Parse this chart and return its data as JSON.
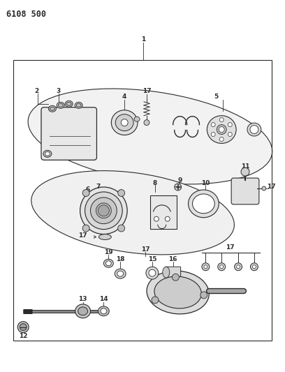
{
  "title": "6108 500",
  "bg_color": "#ffffff",
  "line_color": "#2a2a2a",
  "fig_width": 4.08,
  "fig_height": 5.33,
  "dpi": 100
}
